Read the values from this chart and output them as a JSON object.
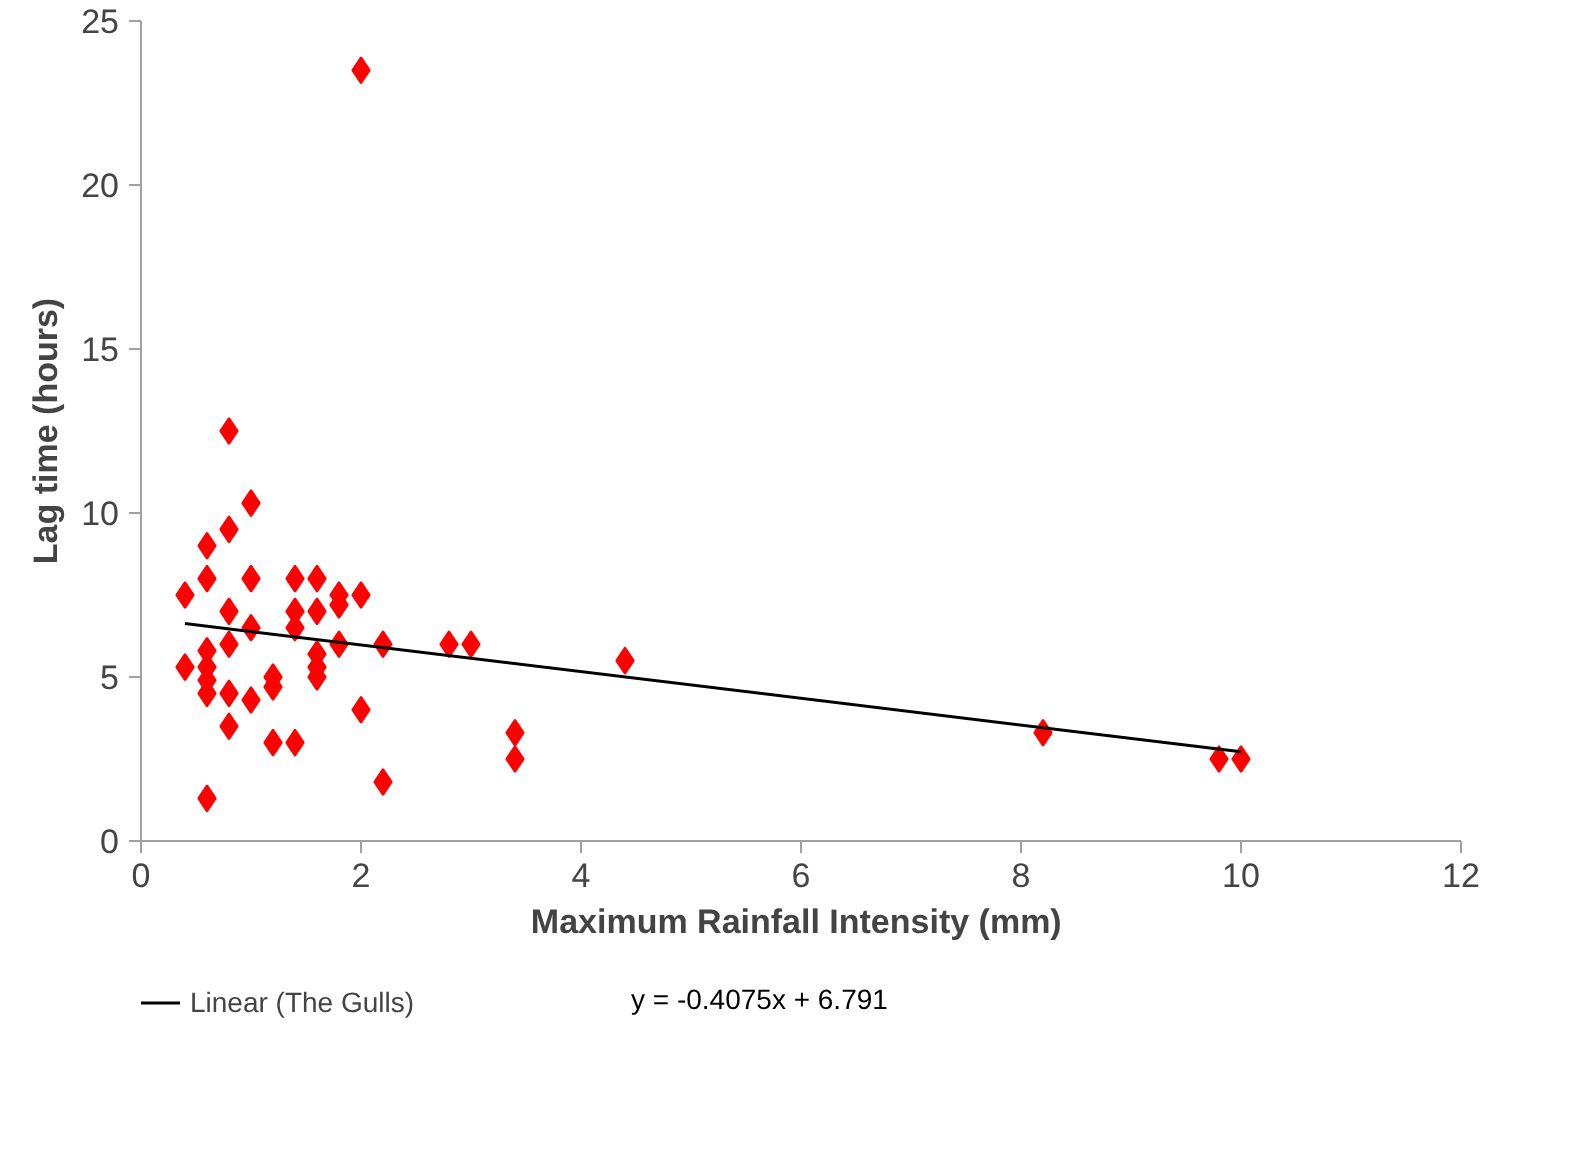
{
  "chart_data": {
    "type": "scatter",
    "xlabel": "Maximum Rainfall Intensity  (mm)",
    "ylabel": "Lag time (hours)",
    "xlim": [
      0,
      12
    ],
    "xticks": [
      0,
      2,
      4,
      6,
      8,
      10,
      12
    ],
    "ylim": [
      0,
      25
    ],
    "yticks": [
      0,
      5,
      10,
      15,
      20,
      25
    ],
    "grid": false,
    "legend": "bottom",
    "annotations": [
      "y = -0.4075x + 6.791"
    ],
    "series": [
      {
        "color": "#ff0000",
        "marker": "diamond",
        "x": [
          0.4,
          0.4,
          0.6,
          0.6,
          0.6,
          0.6,
          0.6,
          0.6,
          0.6,
          0.8,
          0.8,
          0.8,
          0.8,
          0.8,
          0.8,
          1.0,
          1.0,
          1.0,
          1.0,
          1.2,
          1.2,
          1.2,
          1.4,
          1.4,
          1.4,
          1.4,
          1.6,
          1.6,
          1.6,
          1.6,
          1.6,
          1.8,
          1.8,
          1.8,
          2.0,
          2.0,
          2.0,
          2.2,
          2.2,
          2.8,
          3.0,
          3.4,
          3.4,
          4.4,
          8.2,
          9.8,
          10.0
        ],
        "values": [
          7.5,
          5.3,
          9.0,
          8.0,
          5.8,
          5.3,
          4.9,
          4.5,
          1.3,
          12.5,
          9.5,
          7.0,
          6.0,
          4.5,
          3.5,
          10.3,
          8.0,
          6.5,
          4.3,
          5.0,
          4.7,
          3.0,
          8.0,
          7.0,
          6.5,
          3.0,
          8.0,
          7.0,
          5.7,
          5.3,
          5.0,
          7.5,
          7.2,
          6.0,
          7.5,
          4.0,
          23.5,
          6.0,
          1.8,
          6.0,
          6.0,
          3.3,
          2.5,
          5.5,
          3.3,
          2.5,
          2.5
        ]
      },
      {
        "type": "line",
        "name": "Linear (The Gulls)",
        "color": "#000000",
        "x": [
          0.4,
          10.0
        ],
        "values": [
          6.63,
          2.72
        ]
      }
    ]
  }
}
